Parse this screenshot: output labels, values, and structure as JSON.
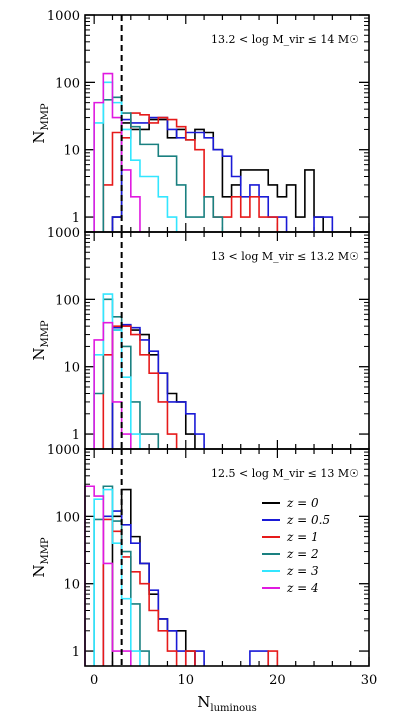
{
  "chart_data": {
    "type": "step-histogram",
    "xlabel": "N_luminous",
    "ylabel": "N_MMP",
    "xlim": [
      -1,
      30
    ],
    "ylim": [
      0.6,
      1000
    ],
    "yscale": "log",
    "x_ticks": [
      0,
      10,
      20,
      30
    ],
    "y_ticks": [
      1,
      10,
      100,
      1000
    ],
    "reference_line_x": 3,
    "legend": {
      "position": "right",
      "entries": [
        "z = 0",
        "z = 0.5",
        "z = 1",
        "z = 2",
        "z = 3",
        "z = 4"
      ]
    },
    "colors": {
      "z0": "#000000",
      "z05": "#1a1ad6",
      "z1": "#e61a1a",
      "z2": "#1a8080",
      "z3": "#33e6ff",
      "z4": "#e01ae0"
    },
    "panels": [
      {
        "annotation": "13.2 < log M_vir ≤ 14 M☉",
        "series": [
          {
            "name": "z = 0",
            "color": "#000000",
            "bins": [
              [
                2,
                1
              ],
              [
                3,
                25
              ],
              [
                4,
                20
              ],
              [
                5,
                20
              ],
              [
                6,
                28
              ],
              [
                7,
                28
              ],
              [
                8,
                15
              ],
              [
                9,
                20
              ],
              [
                10,
                14
              ],
              [
                11,
                20
              ],
              [
                12,
                18
              ],
              [
                13,
                10
              ],
              [
                14,
                2
              ],
              [
                15,
                3
              ],
              [
                16,
                5
              ],
              [
                17,
                5
              ],
              [
                18,
                5
              ],
              [
                19,
                3
              ],
              [
                20,
                2
              ],
              [
                21,
                3
              ],
              [
                22,
                1
              ],
              [
                23,
                5
              ],
              [
                24,
                1
              ]
            ]
          },
          {
            "name": "z = 0.5",
            "color": "#1a1ad6",
            "bins": [
              [
                2,
                1
              ],
              [
                3,
                28
              ],
              [
                4,
                25
              ],
              [
                5,
                25
              ],
              [
                6,
                30
              ],
              [
                7,
                30
              ],
              [
                8,
                20
              ],
              [
                9,
                15
              ],
              [
                10,
                18
              ],
              [
                11,
                18
              ],
              [
                12,
                15
              ],
              [
                13,
                10
              ],
              [
                14,
                8
              ],
              [
                15,
                4
              ],
              [
                16,
                2
              ],
              [
                17,
                3
              ],
              [
                18,
                2
              ],
              [
                19,
                1
              ],
              [
                20,
                1
              ],
              [
                24,
                1
              ],
              [
                25,
                1
              ]
            ]
          },
          {
            "name": "z = 1",
            "color": "#e61a1a",
            "bins": [
              [
                1,
                3
              ],
              [
                2,
                18
              ],
              [
                3,
                15
              ],
              [
                4,
                35
              ],
              [
                5,
                33
              ],
              [
                6,
                25
              ],
              [
                7,
                30
              ],
              [
                8,
                28
              ],
              [
                9,
                22
              ],
              [
                10,
                14
              ],
              [
                11,
                10
              ],
              [
                12,
                2
              ],
              [
                13,
                1
              ],
              [
                14,
                1
              ],
              [
                15,
                2
              ],
              [
                16,
                1
              ],
              [
                17,
                2
              ],
              [
                18,
                1
              ],
              [
                19,
                1
              ]
            ]
          },
          {
            "name": "z = 2",
            "color": "#1a8080",
            "bins": [
              [
                1,
                55
              ],
              [
                2,
                60
              ],
              [
                3,
                35
              ],
              [
                4,
                22
              ],
              [
                5,
                12
              ],
              [
                6,
                12
              ],
              [
                7,
                8
              ],
              [
                8,
                8
              ],
              [
                9,
                3
              ],
              [
                10,
                1
              ],
              [
                11,
                1
              ],
              [
                12,
                2
              ],
              [
                13,
                1
              ]
            ]
          },
          {
            "name": "z = 3",
            "color": "#33e6ff",
            "bins": [
              [
                0,
                25
              ],
              [
                1,
                100
              ],
              [
                2,
                50
              ],
              [
                3,
                20
              ],
              [
                4,
                7
              ],
              [
                5,
                4
              ],
              [
                6,
                4
              ],
              [
                7,
                2
              ],
              [
                8,
                1
              ]
            ]
          },
          {
            "name": "z = 4",
            "color": "#e01ae0",
            "bins": [
              [
                0,
                50
              ],
              [
                1,
                135
              ],
              [
                2,
                30
              ],
              [
                3,
                5
              ],
              [
                4,
                2
              ]
            ]
          }
        ]
      },
      {
        "annotation": "13 < log M_vir ≤ 13.2 M☉",
        "series": [
          {
            "name": "z = 0",
            "color": "#000000",
            "bins": [
              [
                2,
                35
              ],
              [
                3,
                40
              ],
              [
                4,
                35
              ],
              [
                5,
                30
              ],
              [
                6,
                15
              ],
              [
                7,
                8
              ],
              [
                8,
                4
              ],
              [
                9,
                3
              ],
              [
                10,
                1
              ]
            ]
          },
          {
            "name": "z = 0.5",
            "color": "#1a1ad6",
            "bins": [
              [
                2,
                38
              ],
              [
                3,
                42
              ],
              [
                4,
                38
              ],
              [
                5,
                25
              ],
              [
                6,
                17
              ],
              [
                7,
                8
              ],
              [
                8,
                3
              ],
              [
                9,
                3
              ],
              [
                10,
                2
              ],
              [
                11,
                1
              ]
            ]
          },
          {
            "name": "z = 1",
            "color": "#e61a1a",
            "bins": [
              [
                1,
                15
              ],
              [
                2,
                40
              ],
              [
                3,
                40
              ],
              [
                4,
                30
              ],
              [
                5,
                15
              ],
              [
                6,
                8
              ],
              [
                7,
                3
              ],
              [
                8,
                1
              ]
            ]
          },
          {
            "name": "z = 2",
            "color": "#1a8080",
            "bins": [
              [
                0,
                4
              ],
              [
                1,
                100
              ],
              [
                2,
                55
              ],
              [
                3,
                20
              ],
              [
                4,
                3
              ],
              [
                5,
                1
              ],
              [
                6,
                1
              ]
            ]
          },
          {
            "name": "z = 3",
            "color": "#33e6ff",
            "bins": [
              [
                0,
                15
              ],
              [
                1,
                120
              ],
              [
                2,
                35
              ],
              [
                3,
                7
              ],
              [
                4,
                1
              ]
            ]
          },
          {
            "name": "z = 4",
            "color": "#e01ae0",
            "bins": [
              [
                0,
                25
              ],
              [
                1,
                45
              ],
              [
                2,
                3
              ],
              [
                3,
                1
              ]
            ]
          }
        ]
      },
      {
        "annotation": "12.5 < log M_vir ≤ 13 M☉",
        "series": [
          {
            "name": "z = 0",
            "color": "#000000",
            "bins": [
              [
                2,
                100
              ],
              [
                3,
                250
              ],
              [
                4,
                50
              ],
              [
                5,
                20
              ],
              [
                6,
                7
              ],
              [
                7,
                3
              ],
              [
                8,
                2
              ],
              [
                9,
                2
              ],
              [
                10,
                1
              ]
            ]
          },
          {
            "name": "z = 0.5",
            "color": "#1a1ad6",
            "bins": [
              [
                1,
                100
              ],
              [
                2,
                120
              ],
              [
                3,
                75
              ],
              [
                4,
                40
              ],
              [
                5,
                20
              ],
              [
                6,
                8
              ],
              [
                7,
                3
              ],
              [
                8,
                2
              ],
              [
                9,
                1
              ],
              [
                11,
                1
              ],
              [
                17,
                1
              ],
              [
                18,
                1
              ]
            ]
          },
          {
            "name": "z = 1",
            "color": "#e61a1a",
            "bins": [
              [
                1,
                90
              ],
              [
                2,
                60
              ],
              [
                3,
                25
              ],
              [
                4,
                15
              ],
              [
                5,
                10
              ],
              [
                6,
                4
              ],
              [
                7,
                2
              ],
              [
                8,
                1
              ],
              [
                10,
                1
              ],
              [
                19,
                1
              ]
            ]
          },
          {
            "name": "z = 2",
            "color": "#1a8080",
            "bins": [
              [
                0,
                90
              ],
              [
                1,
                280
              ],
              [
                2,
                85
              ],
              [
                3,
                30
              ],
              [
                4,
                5
              ],
              [
                5,
                1
              ]
            ]
          },
          {
            "name": "z = 3",
            "color": "#33e6ff",
            "bins": [
              [
                0,
                180
              ],
              [
                1,
                250
              ],
              [
                2,
                40
              ],
              [
                3,
                6
              ],
              [
                4,
                1
              ]
            ]
          },
          {
            "name": "z = 4",
            "color": "#e01ae0",
            "bins": [
              [
                -1,
                280
              ],
              [
                0,
                200
              ],
              [
                1,
                20
              ],
              [
                2,
                1
              ],
              [
                3,
                1
              ]
            ]
          }
        ]
      }
    ]
  },
  "axis_text": {
    "y_main": "N",
    "y_sub": "MMP",
    "x_main": "N",
    "x_sub": "luminous"
  }
}
